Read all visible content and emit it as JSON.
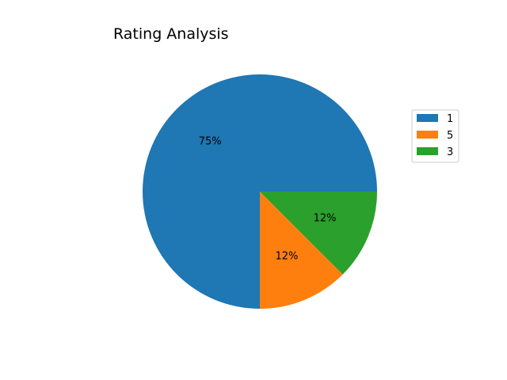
{
  "chart_data": {
    "type": "pie",
    "title": "Rating Analysis",
    "categories": [
      "1",
      "5",
      "3"
    ],
    "values": [
      75,
      12.5,
      12.5
    ],
    "percent_labels": [
      "75%",
      "12%",
      "12%"
    ],
    "colors": [
      "#1f77b4",
      "#ff7f0e",
      "#2ca02c"
    ],
    "start_angle_deg": 0,
    "direction": "counterclockwise",
    "legend": {
      "position": "right",
      "entries": [
        "1",
        "5",
        "3"
      ]
    }
  }
}
